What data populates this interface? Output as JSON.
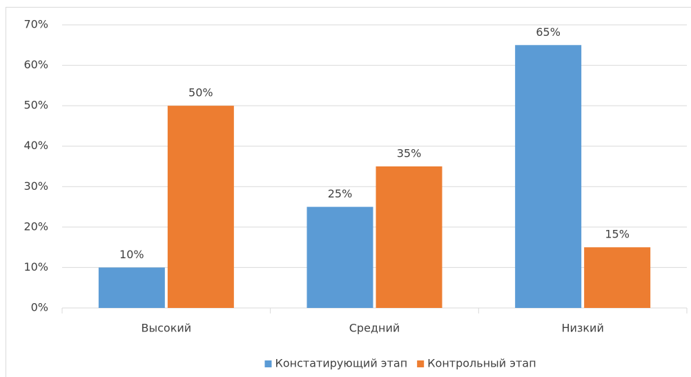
{
  "chart_data": {
    "type": "bar",
    "categories": [
      "Высокий",
      "Средний",
      "Низкий"
    ],
    "series": [
      {
        "name": "Констатирующий этап",
        "color": "#5b9bd5",
        "values": [
          10,
          25,
          65
        ],
        "value_labels": [
          "10%",
          "25%",
          "65%"
        ]
      },
      {
        "name": "Контрольный этап",
        "color": "#ed7d31",
        "values": [
          50,
          35,
          15
        ],
        "value_labels": [
          "50%",
          "35%",
          "15%"
        ]
      }
    ],
    "ylim": [
      0,
      70
    ],
    "yticks": [
      {
        "value": 0,
        "label": "0%"
      },
      {
        "value": 10,
        "label": "10%"
      },
      {
        "value": 20,
        "label": "20%"
      },
      {
        "value": 30,
        "label": "30%"
      },
      {
        "value": 40,
        "label": "40%"
      },
      {
        "value": 50,
        "label": "50%"
      },
      {
        "value": 60,
        "label": "60%"
      },
      {
        "value": 70,
        "label": "70%"
      }
    ],
    "grid": true,
    "legend": "bottom"
  }
}
